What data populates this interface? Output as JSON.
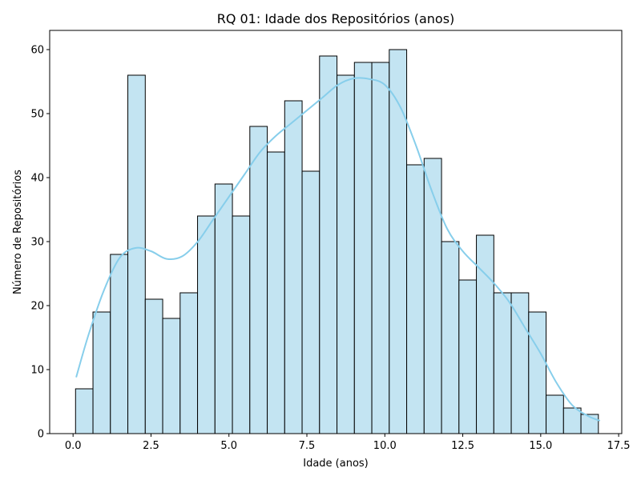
{
  "chart_data": {
    "type": "bar",
    "subtype": "histogram",
    "title": "RQ 01: Idade dos Repositórios (anos)",
    "xlabel": "Idade (anos)",
    "ylabel": "Número de Repositórios",
    "xlim": [
      -0.75,
      17.6
    ],
    "ylim": [
      0,
      63
    ],
    "xticks": [
      0.0,
      2.5,
      5.0,
      7.5,
      10.0,
      12.5,
      15.0,
      17.5
    ],
    "xtick_labels": [
      "0.0",
      "2.5",
      "5.0",
      "7.5",
      "10.0",
      "12.5",
      "15.0",
      "17.5"
    ],
    "yticks": [
      0,
      10,
      20,
      30,
      40,
      50,
      60
    ],
    "ytick_labels": [
      "0",
      "10",
      "20",
      "30",
      "40",
      "50",
      "60"
    ],
    "bin_start": 0.08,
    "bin_width": 0.559,
    "counts": [
      7,
      19,
      28,
      56,
      21,
      18,
      22,
      34,
      39,
      34,
      48,
      44,
      52,
      41,
      59,
      56,
      58,
      58,
      60,
      42,
      43,
      30,
      24,
      31,
      22,
      22,
      19,
      6,
      4,
      3
    ],
    "kde": {
      "x": [
        0.1,
        0.5,
        1.0,
        1.5,
        2.0,
        2.5,
        3.0,
        3.5,
        4.0,
        4.5,
        5.0,
        5.5,
        6.0,
        6.5,
        7.0,
        7.5,
        8.0,
        8.5,
        9.0,
        9.5,
        10.0,
        10.5,
        11.0,
        11.5,
        12.0,
        12.5,
        13.0,
        13.5,
        14.0,
        14.5,
        15.0,
        15.5,
        16.0,
        16.5,
        16.9
      ],
      "y": [
        8.8,
        15.5,
        22.5,
        27.5,
        29.0,
        28.5,
        27.3,
        27.7,
        30.0,
        33.5,
        37.0,
        40.5,
        44.0,
        46.5,
        48.5,
        50.5,
        52.5,
        54.5,
        55.5,
        55.4,
        54.5,
        51.0,
        45.0,
        38.0,
        32.0,
        28.5,
        26.0,
        23.5,
        20.5,
        16.5,
        12.5,
        8.0,
        4.5,
        2.8,
        2.0
      ]
    },
    "colors": {
      "bar_fill": "#c3e4f2",
      "bar_edge": "#000000",
      "kde_line": "#87ceeb"
    },
    "grid": false,
    "legend": "none"
  }
}
